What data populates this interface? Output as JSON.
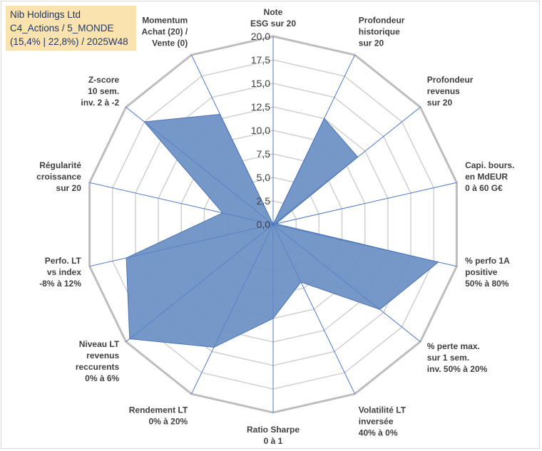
{
  "title": {
    "line1": "Nib Holdings Ltd",
    "line2": "C4_Actions / 5_MONDE",
    "line3": "(15,4% | 22,8%) / 2025W48"
  },
  "colors": {
    "fill": "#6a8fc4",
    "stroke": "#4a73b5",
    "grid": "#d0d0d0",
    "outer_grid": "#bdbdbd",
    "spoke": "#4472c4",
    "title_bg": "#fbe3b0",
    "title_text": "#1f3864",
    "label_text": "#404040"
  },
  "chart_data": {
    "type": "radar",
    "rmin": 0,
    "rmax": 20,
    "tick_labels": [
      "0,0",
      "2,5",
      "5,0",
      "7,5",
      "10,0",
      "12,5",
      "15,0",
      "17,5",
      "20,0"
    ],
    "axes": [
      {
        "lines": [
          "Note",
          "ESG sur 20"
        ],
        "value": 0
      },
      {
        "lines": [
          "Profondeur",
          "historique",
          "sur 20"
        ],
        "value": 12.5
      },
      {
        "lines": [
          "Profondeur",
          "revenus",
          "sur 20"
        ],
        "value": 11.5
      },
      {
        "lines": [
          "Capi. bours.",
          "en MdEUR",
          "0 à 60 G€"
        ],
        "value": 0.3
      },
      {
        "lines": [
          "% perfo 1A",
          "positive",
          "50% à 80%"
        ],
        "value": 18.0
      },
      {
        "lines": [
          "% perte max.",
          "sur 1 sem.",
          "inv. 50% à 20%"
        ],
        "value": 14.5
      },
      {
        "lines": [
          "Volatilité LT",
          "inversée",
          "40% à 0%"
        ],
        "value": 6.8
      },
      {
        "lines": [
          "Ratio Sharpe",
          "0 à 1"
        ],
        "value": 10.0
      },
      {
        "lines": [
          "Rendement LT",
          "0% à 20%"
        ],
        "value": 14.5
      },
      {
        "lines": [
          "Niveau LT",
          "revenus",
          "reccurents",
          "0% à 6%"
        ],
        "value": 19.5
      },
      {
        "lines": [
          "Perfo. LT",
          "vs index",
          "-8% à 12%"
        ],
        "value": 16.0
      },
      {
        "lines": [
          "Régularité",
          "croissance",
          "sur 20"
        ],
        "value": 5.5
      },
      {
        "lines": [
          "Z-score",
          "10 sem.",
          "inv. 2 à -2"
        ],
        "value": 17.5
      },
      {
        "lines": [
          "Momentum",
          "Achat (20) /",
          "Vente (0)"
        ],
        "value": 13.0
      }
    ]
  }
}
